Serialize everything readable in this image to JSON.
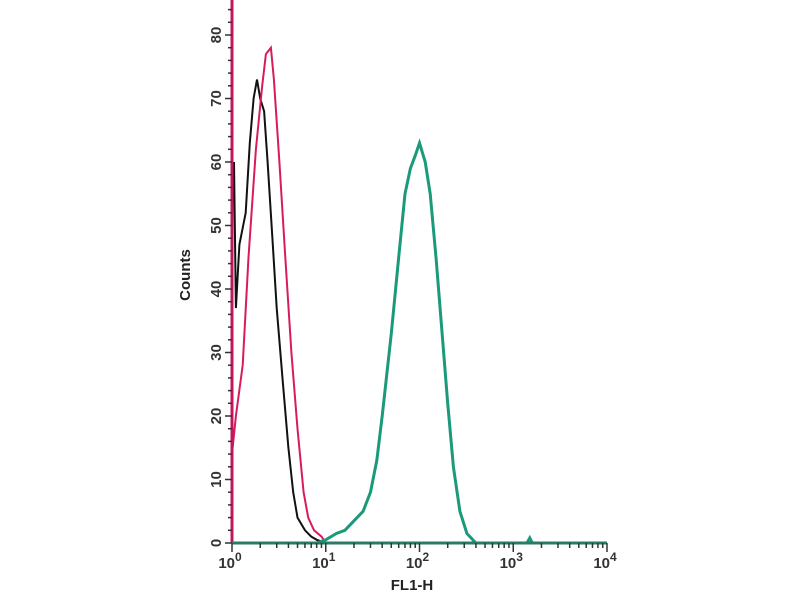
{
  "chart_data": {
    "type": "line",
    "title": "",
    "xlabel": "FL1-H",
    "ylabel": "Counts",
    "xscale": "log",
    "xlim": [
      1,
      10000
    ],
    "ylim": [
      0,
      85
    ],
    "grid": false,
    "yticks": [
      "0",
      "10",
      "20",
      "30",
      "40",
      "50",
      "60",
      "70",
      "80"
    ],
    "xticks": [
      {
        "base": "10",
        "exp": "0"
      },
      {
        "base": "10",
        "exp": "1"
      },
      {
        "base": "10",
        "exp": "2"
      },
      {
        "base": "10",
        "exp": "3"
      },
      {
        "base": "10",
        "exp": "4"
      }
    ],
    "axis_color": "#c2185b",
    "series": [
      {
        "color": "#111111",
        "x": [
          1.05,
          1.1,
          1.2,
          1.4,
          1.55,
          1.7,
          1.85,
          2.0,
          2.2,
          2.4,
          2.7,
          3.0,
          3.5,
          4.0,
          4.5,
          5.0,
          6.0,
          7.0,
          8.0,
          10.0
        ],
        "y": [
          60,
          37,
          47,
          52,
          63,
          70,
          73,
          70,
          68,
          60,
          48,
          37,
          25,
          15,
          8,
          4,
          2,
          1,
          0.5,
          0
        ]
      },
      {
        "color": "#d81b60",
        "x": [
          1.0,
          1.1,
          1.3,
          1.5,
          1.8,
          2.1,
          2.3,
          2.6,
          2.8,
          3.2,
          3.7,
          4.3,
          5.0,
          5.8,
          6.5,
          7.5,
          9.0,
          10,
          100,
          316
        ],
        "y": [
          14,
          20,
          28,
          45,
          62,
          72,
          77,
          78,
          73,
          60,
          45,
          30,
          18,
          8,
          4,
          2,
          1,
          0,
          0,
          0
        ]
      },
      {
        "color": "#1a9a7a",
        "x": [
          1,
          8,
          10,
          13,
          16,
          20,
          25,
          30,
          35,
          40,
          50,
          60,
          70,
          80,
          90,
          100,
          115,
          130,
          150,
          170,
          200,
          230,
          270,
          320,
          400,
          1400,
          1500,
          1600,
          10000
        ],
        "y": [
          0,
          0,
          0.5,
          1.5,
          2,
          3.5,
          5,
          8,
          13,
          20,
          33,
          45,
          55,
          59,
          61,
          63,
          60,
          55,
          45,
          35,
          22,
          12,
          5,
          1.5,
          0,
          0,
          0.8,
          0,
          0
        ]
      }
    ]
  }
}
